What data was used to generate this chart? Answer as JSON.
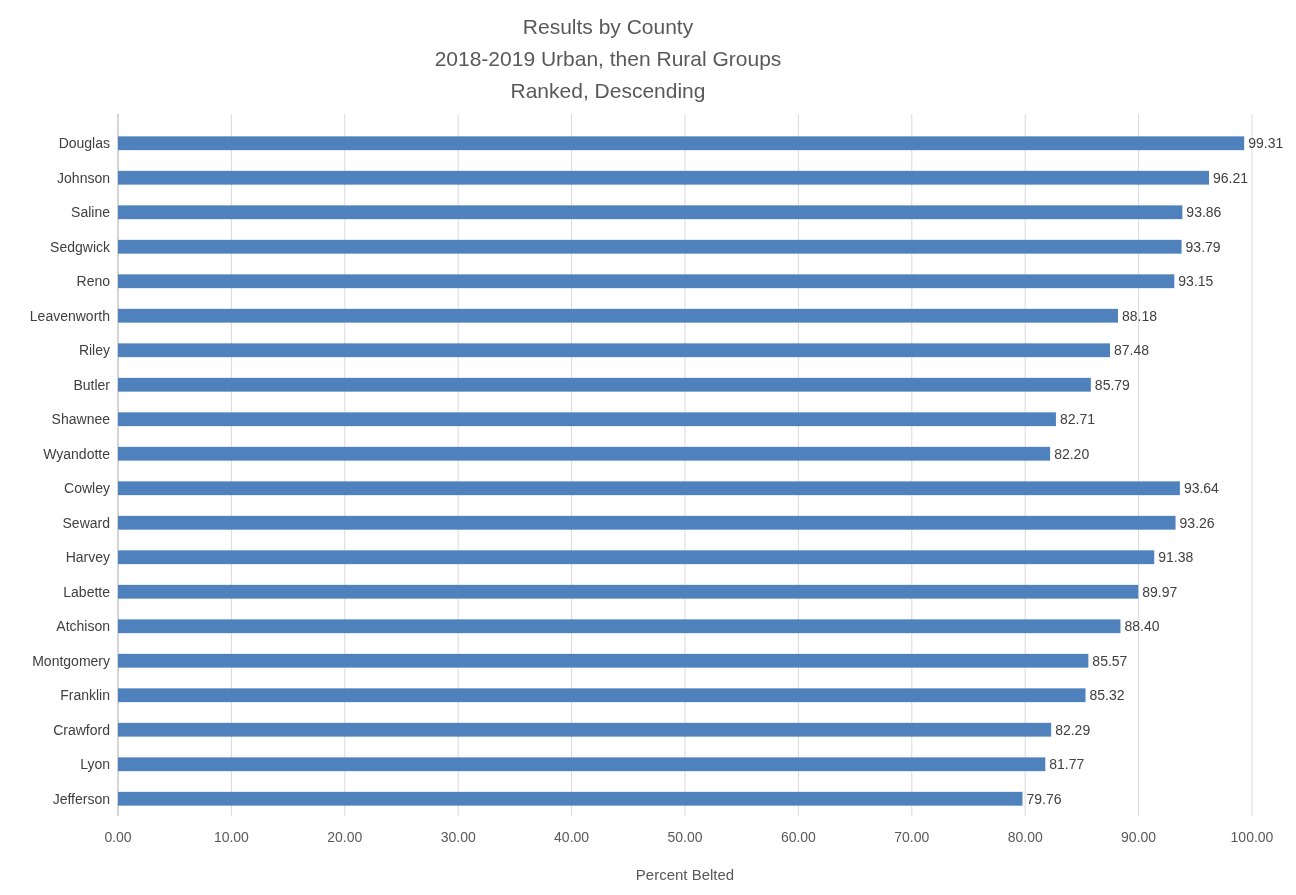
{
  "chart_data": {
    "type": "bar",
    "orientation": "horizontal",
    "title": "Results by County",
    "subtitle": "2018-2019 Urban, then Rural Groups\nRanked, Descending",
    "xlabel": "Percent Belted",
    "categories": [
      "Douglas",
      "Johnson",
      "Saline",
      "Sedgwick",
      "Reno",
      "Leavenworth",
      "Riley",
      "Butler",
      "Shawnee",
      "Wyandotte",
      "Cowley",
      "Seward",
      "Harvey",
      "Labette",
      "Atchison",
      "Montgomery",
      "Franklin",
      "Crawford",
      "Lyon",
      "Jefferson"
    ],
    "values": [
      99.31,
      96.21,
      93.86,
      93.79,
      93.15,
      88.18,
      87.48,
      85.79,
      82.71,
      82.2,
      93.64,
      93.26,
      91.38,
      89.97,
      88.4,
      85.57,
      85.32,
      82.29,
      81.77,
      79.76
    ],
    "value_labels": [
      "99.31",
      "96.21",
      "93.86",
      "93.79",
      "93.15",
      "88.18",
      "87.48",
      "85.79",
      "82.71",
      "82.20",
      "93.64",
      "93.26",
      "91.38",
      "89.97",
      "88.40",
      "85.57",
      "85.32",
      "82.29",
      "81.77",
      "79.76"
    ],
    "color": "#4f81bd",
    "xlim": [
      0,
      100
    ],
    "xticks": [
      {
        "value": 0,
        "label": "0.00"
      },
      {
        "value": 10,
        "label": "10.00"
      },
      {
        "value": 20,
        "label": "20.00"
      },
      {
        "value": 30,
        "label": "30.00"
      },
      {
        "value": 40,
        "label": "40.00"
      },
      {
        "value": 50,
        "label": "50.00"
      },
      {
        "value": 60,
        "label": "60.00"
      },
      {
        "value": 70,
        "label": "70.00"
      },
      {
        "value": 80,
        "label": "80.00"
      },
      {
        "value": 90,
        "label": "90.00"
      },
      {
        "value": 100,
        "label": "100.00"
      }
    ],
    "grid": "x"
  }
}
